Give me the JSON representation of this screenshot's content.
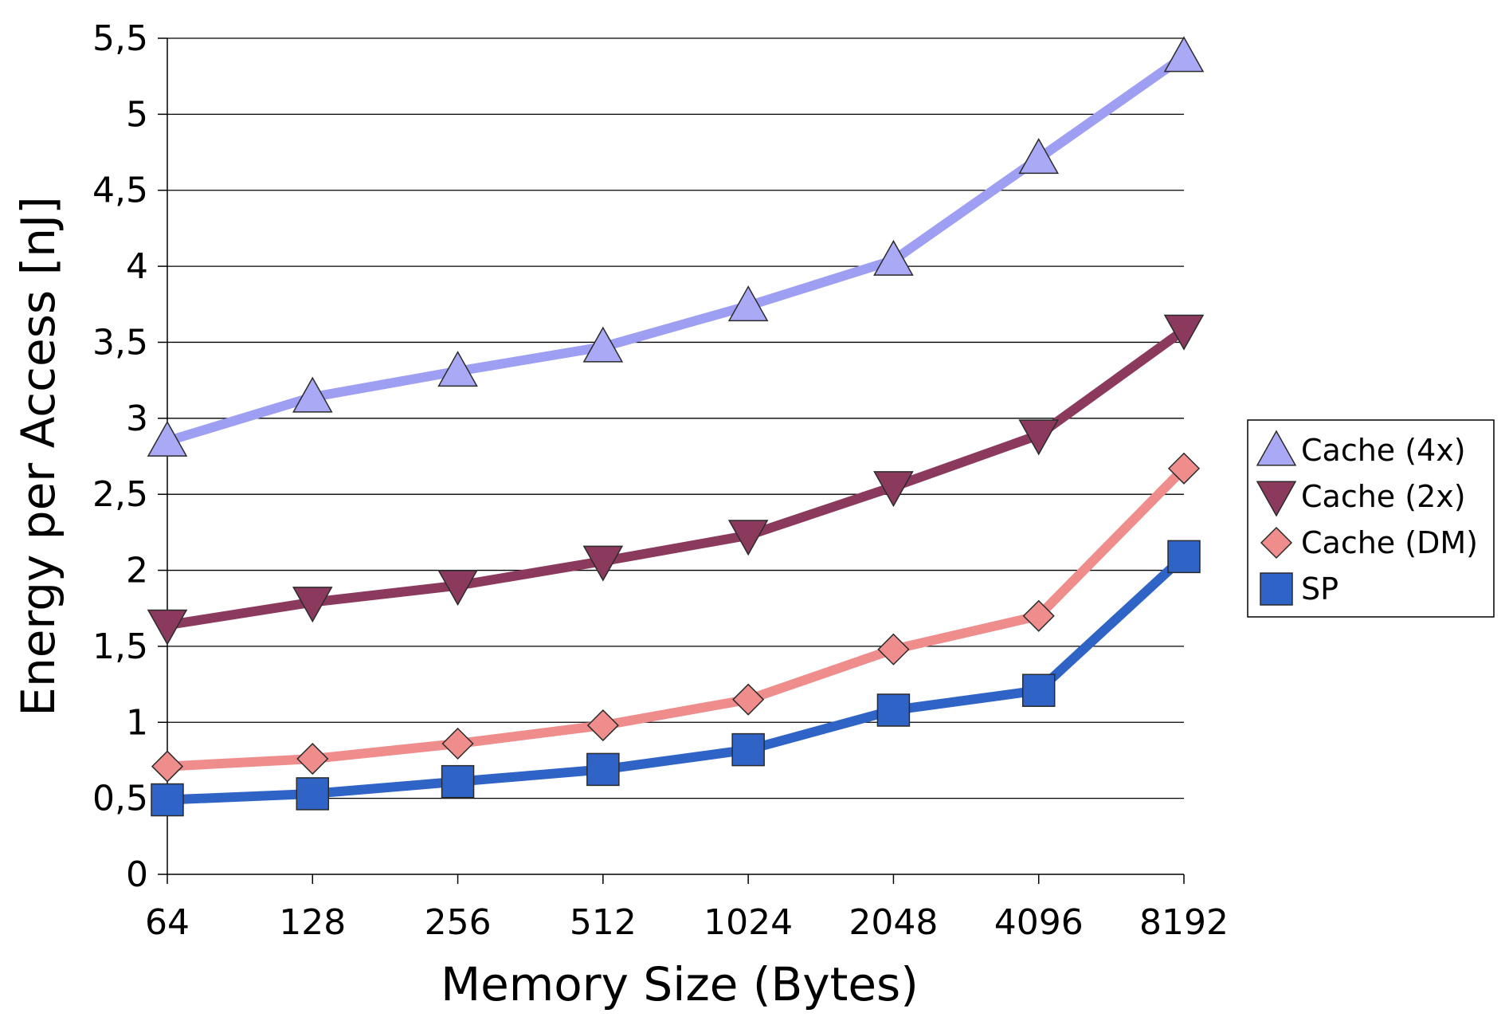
{
  "chart_data": {
    "type": "line",
    "xlabel": "Memory Size (Bytes)",
    "ylabel": "Energy per Access [nJ]",
    "categories": [
      "64",
      "128",
      "256",
      "512",
      "1024",
      "2048",
      "4096",
      "8192"
    ],
    "ylim": [
      0,
      5.5
    ],
    "yticks": [
      "0",
      "0,5",
      "1",
      "1,5",
      "2",
      "2,5",
      "3",
      "3,5",
      "4",
      "4,5",
      "5",
      "5,5"
    ],
    "grid": "horizontal",
    "legend_position": "right",
    "series": [
      {
        "name": "Cache (4x)",
        "marker": "triangle-up",
        "line_color": "#9e9ef2",
        "marker_color": "#a9a9f5",
        "values": [
          2.85,
          3.14,
          3.31,
          3.47,
          3.74,
          4.04,
          4.71,
          5.38
        ]
      },
      {
        "name": "Cache (2x)",
        "marker": "triangle-down",
        "line_color": "#8b3a5e",
        "marker_color": "#8b3a5e",
        "values": [
          1.64,
          1.79,
          1.9,
          2.06,
          2.23,
          2.55,
          2.89,
          3.58
        ]
      },
      {
        "name": "Cache (DM)",
        "marker": "diamond",
        "line_color": "#ef8c8c",
        "marker_color": "#ef8c8c",
        "values": [
          0.71,
          0.76,
          0.86,
          0.98,
          1.15,
          1.48,
          1.7,
          2.67
        ]
      },
      {
        "name": "SP",
        "marker": "square",
        "line_color": "#2f63c6",
        "marker_color": "#2f63c6",
        "values": [
          0.49,
          0.53,
          0.61,
          0.69,
          0.82,
          1.08,
          1.21,
          2.09
        ]
      }
    ]
  }
}
